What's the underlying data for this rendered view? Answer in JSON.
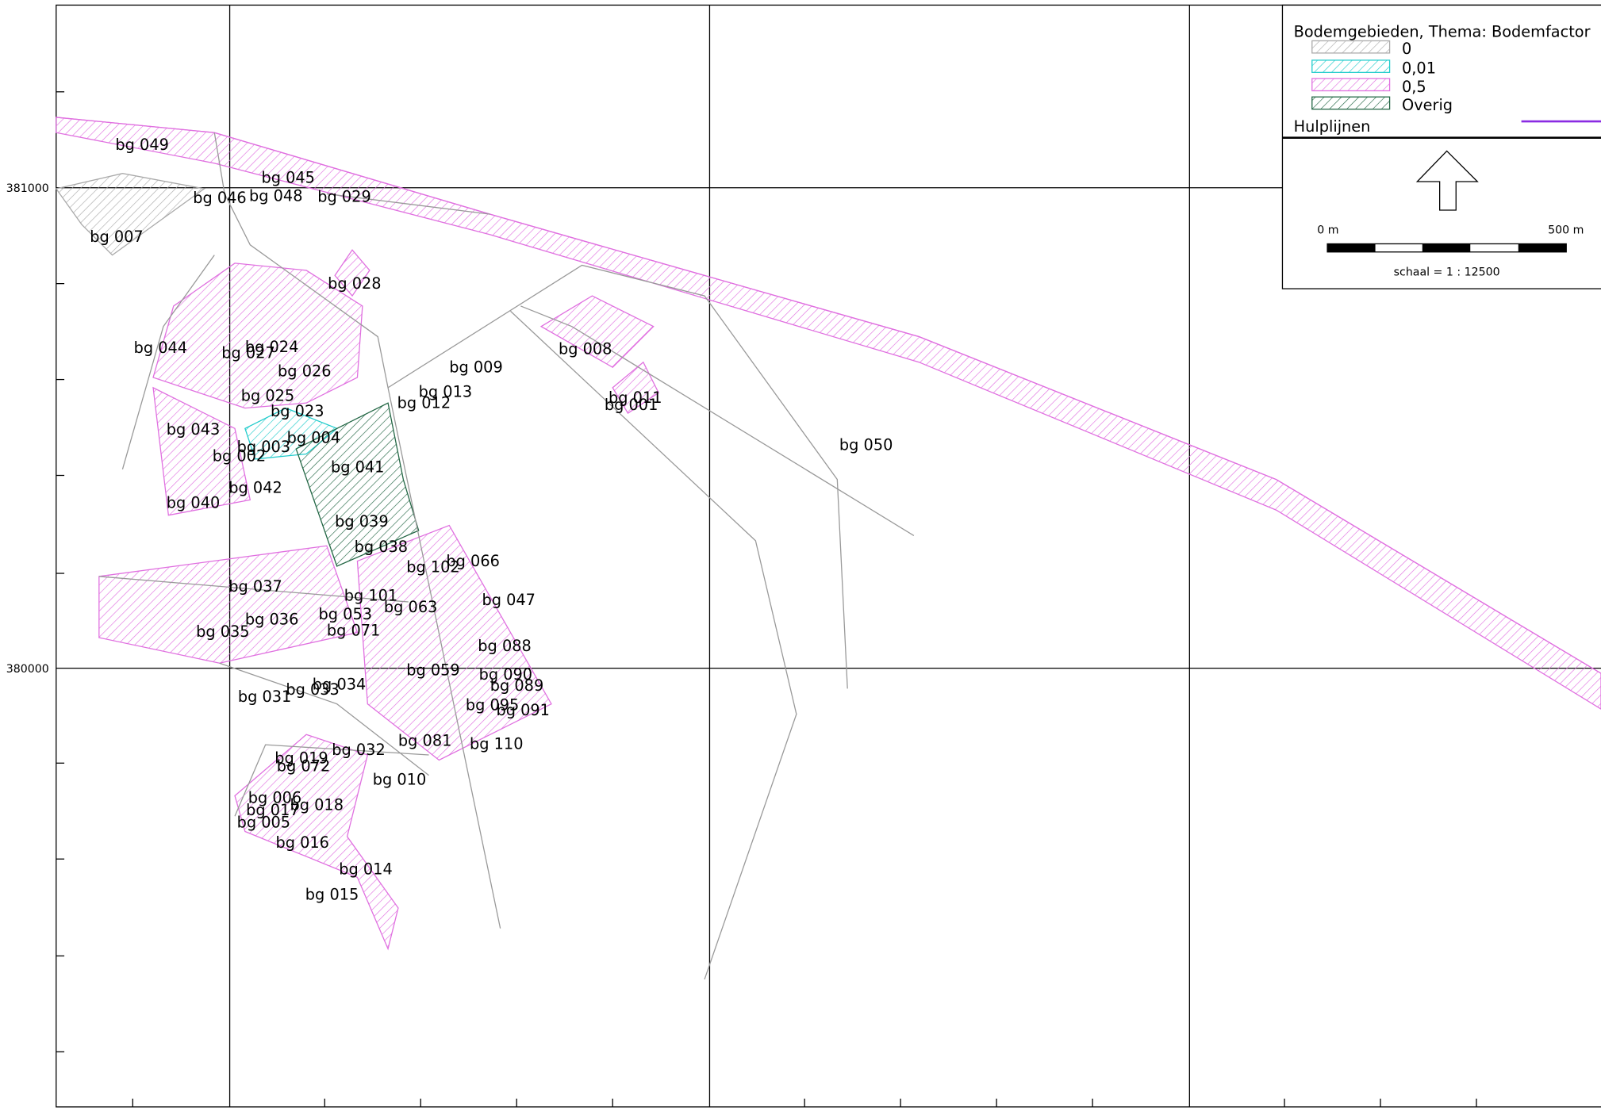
{
  "legend": {
    "title": "Bodemgebieden, Thema: Bodemfactor",
    "items": [
      "0",
      "0,01",
      "0,5",
      "Overig"
    ],
    "lines_title": "Hulplijnen"
  },
  "scale": {
    "start": "0 m",
    "end": "500 m",
    "ratio": "schaal = 1 : 12500"
  },
  "axis": {
    "y_labels": [
      "381000",
      "380000"
    ]
  },
  "areas": [
    "bg 049",
    "bg 045",
    "bg 046",
    "bg 048",
    "bg 029",
    "bg 007",
    "bg 028",
    "bg 044",
    "bg 027",
    "bg 024",
    "bg 026",
    "bg 009",
    "bg 008",
    "bg 013",
    "bg 012",
    "bg 011",
    "bg 001",
    "bg 025",
    "bg 023",
    "bg 043",
    "bg 003",
    "bg 002",
    "bg 004",
    "bg 041",
    "bg 050",
    "bg 042",
    "bg 040",
    "bg 039",
    "bg 038",
    "bg 102",
    "bg 066",
    "bg 037",
    "bg 101",
    "bg 047",
    "bg 063",
    "bg 036",
    "bg 053",
    "bg 035",
    "bg 071",
    "bg 088",
    "bg 059",
    "bg 090",
    "bg 034",
    "bg 089",
    "bg 031",
    "bg 033",
    "bg 095",
    "bg 091",
    "bg 081",
    "bg 110",
    "bg 032",
    "bg 019",
    "bg 072",
    "bg 010",
    "bg 006",
    "bg 017",
    "bg 018",
    "bg 005",
    "bg 016",
    "bg 014",
    "bg 015"
  ]
}
